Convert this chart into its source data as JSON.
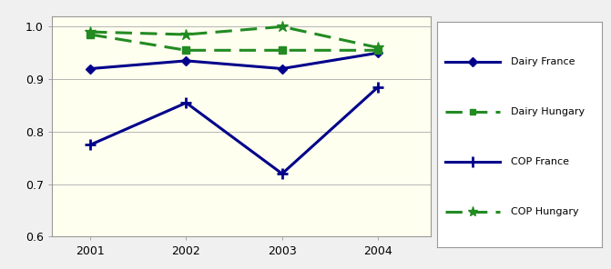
{
  "years": [
    2001,
    2002,
    2003,
    2004
  ],
  "dairy_france": [
    0.92,
    0.935,
    0.92,
    0.95
  ],
  "dairy_hungary": [
    0.985,
    0.955,
    0.955,
    0.955
  ],
  "cop_france": [
    0.775,
    0.855,
    0.72,
    0.885
  ],
  "cop_hungary": [
    0.99,
    0.985,
    1.0,
    0.96
  ],
  "blue_color": "#00008B",
  "green_color": "#228B22",
  "background_color": "#FFFFF0",
  "outer_bg": "#F0F0F0",
  "ylim": [
    0.6,
    1.02
  ],
  "yticks": [
    0.6,
    0.7,
    0.8,
    0.9,
    1.0
  ],
  "legend_labels": [
    "Dairy France",
    "Dairy Hungary",
    "COP France",
    "COP Hungary"
  ],
  "linewidth": 2.2
}
